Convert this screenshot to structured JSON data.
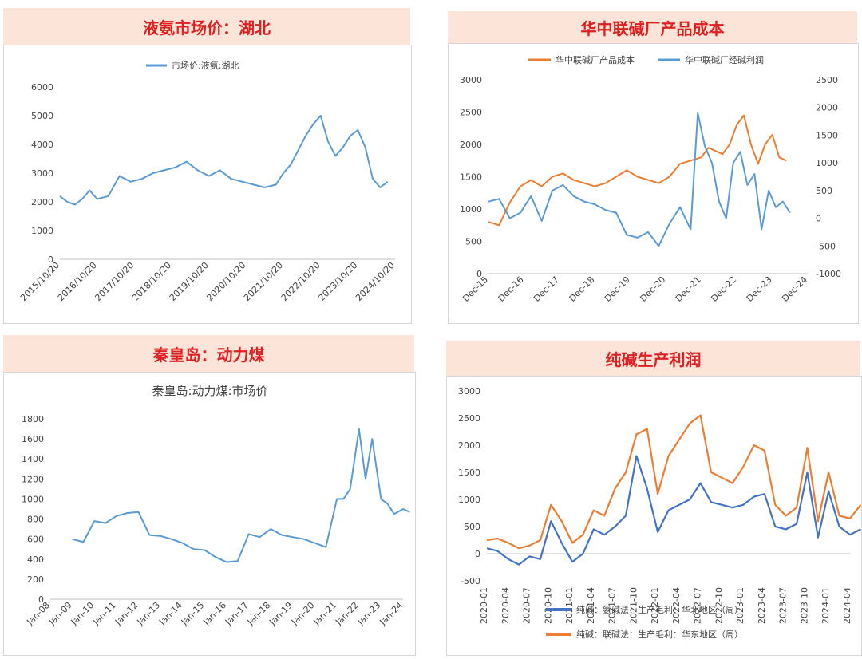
{
  "panels": {
    "p1": {
      "title": "液氨市场价：湖北"
    },
    "p2": {
      "title": "华中联碱厂产品成本"
    },
    "p3": {
      "title": "秦皇岛：动力煤"
    },
    "p4": {
      "title": "纯碱生产利润"
    }
  },
  "chart_data": [
    {
      "type": "line",
      "title": "",
      "legend": "top",
      "grid": false,
      "x_categories": [
        "2015/10/20",
        "2016/10/20",
        "2017/10/20",
        "2018/10/20",
        "2019/10/20",
        "2020/10/20",
        "2021/10/20",
        "2022/10/20",
        "2023/10/20",
        "2024/10/20"
      ],
      "ylim": [
        0,
        6000
      ],
      "yticks": [
        0,
        1000,
        2000,
        3000,
        4000,
        5000,
        6000
      ],
      "series": [
        {
          "name": "市场价:液氨:湖北",
          "color": "#5b9bd5",
          "x": [
            0,
            0.2,
            0.4,
            0.6,
            0.8,
            1.0,
            1.3,
            1.6,
            1.9,
            2.2,
            2.5,
            2.8,
            3.1,
            3.4,
            3.7,
            4.0,
            4.3,
            4.6,
            4.9,
            5.2,
            5.5,
            5.8,
            6.0,
            6.2,
            6.4,
            6.6,
            6.8,
            7.0,
            7.2,
            7.4,
            7.6,
            7.8,
            8.0,
            8.2,
            8.4,
            8.6,
            8.8
          ],
          "y": [
            2200,
            2000,
            1900,
            2100,
            2400,
            2100,
            2200,
            2900,
            2700,
            2800,
            3000,
            3100,
            3200,
            3400,
            3100,
            2900,
            3100,
            2800,
            2700,
            2600,
            2500,
            2600,
            3000,
            3300,
            3800,
            4300,
            4700,
            5000,
            4100,
            3600,
            3900,
            4300,
            4500,
            3900,
            2800,
            2500,
            2700
          ]
        }
      ]
    },
    {
      "type": "line",
      "title": "",
      "legend": "top",
      "grid": false,
      "x_categories": [
        "Dec-15",
        "Dec-16",
        "Dec-17",
        "Dec-18",
        "Dec-19",
        "Dec-20",
        "Dec-21",
        "Dec-22",
        "Dec-23",
        "Dec-24"
      ],
      "ylim_left": [
        0,
        3000
      ],
      "yticks_left": [
        0,
        500,
        1000,
        1500,
        2000,
        2500,
        3000
      ],
      "ylim_right": [
        -1000,
        2500
      ],
      "yticks_right": [
        -1000,
        -500,
        0,
        500,
        1000,
        1500,
        2000,
        2500
      ],
      "series": [
        {
          "name": "华中联碱厂产品成本",
          "color": "#ed7d31",
          "axis": "left",
          "x": [
            0,
            0.3,
            0.6,
            0.9,
            1.2,
            1.5,
            1.8,
            2.1,
            2.4,
            2.7,
            3.0,
            3.3,
            3.6,
            3.9,
            4.2,
            4.5,
            4.8,
            5.1,
            5.4,
            5.7,
            6.0,
            6.2,
            6.4,
            6.6,
            6.8,
            7.0,
            7.2,
            7.4,
            7.6,
            7.8,
            8.0,
            8.2,
            8.4
          ],
          "y": [
            800,
            750,
            1100,
            1350,
            1450,
            1350,
            1500,
            1550,
            1450,
            1400,
            1350,
            1400,
            1500,
            1600,
            1500,
            1450,
            1400,
            1500,
            1700,
            1750,
            1800,
            1950,
            1900,
            1850,
            2000,
            2300,
            2450,
            2000,
            1700,
            2000,
            2150,
            1800,
            1750
          ]
        },
        {
          "name": "华中联碱厂经碱利润",
          "color": "#5b9bd5",
          "axis": "right",
          "x": [
            0,
            0.3,
            0.6,
            0.9,
            1.2,
            1.5,
            1.8,
            2.1,
            2.4,
            2.7,
            3.0,
            3.3,
            3.6,
            3.9,
            4.2,
            4.5,
            4.8,
            5.1,
            5.4,
            5.7,
            5.9,
            6.1,
            6.3,
            6.5,
            6.7,
            6.9,
            7.1,
            7.3,
            7.5,
            7.7,
            7.9,
            8.1,
            8.3,
            8.5
          ],
          "y": [
            300,
            350,
            0,
            100,
            400,
            -50,
            500,
            600,
            400,
            300,
            250,
            150,
            100,
            -300,
            -350,
            -250,
            -500,
            -100,
            200,
            -200,
            1900,
            1300,
            1000,
            300,
            0,
            1000,
            1200,
            600,
            800,
            -200,
            500,
            200,
            300,
            100
          ]
        }
      ]
    },
    {
      "type": "line",
      "title": "秦皇岛:动力煤:市场价",
      "legend": "none",
      "grid": false,
      "x_categories": [
        "Jan-08",
        "Jan-09",
        "Jan-10",
        "Jan-11",
        "Jan-12",
        "Jan-13",
        "Jan-14",
        "Jan-15",
        "Jan-16",
        "Jan-17",
        "Jan-18",
        "Jan-19",
        "Jan-20",
        "Jan-21",
        "Jan-22",
        "Jan-23",
        "Jan-24"
      ],
      "ylim": [
        0,
        1800
      ],
      "yticks": [
        0,
        200,
        400,
        600,
        800,
        1000,
        1200,
        1400,
        1600,
        1800
      ],
      "series": [
        {
          "name": "",
          "color": "#5b9bd5",
          "x": [
            1,
            1.5,
            2,
            2.5,
            3,
            3.5,
            4,
            4.5,
            5,
            5.5,
            6,
            6.5,
            7,
            7.5,
            8,
            8.5,
            9,
            9.5,
            10,
            10.5,
            11,
            11.5,
            12,
            12.5,
            13,
            13.3,
            13.6,
            14,
            14.3,
            14.6,
            15,
            15.3,
            15.6,
            16,
            16.3
          ],
          "y": [
            600,
            570,
            780,
            760,
            830,
            860,
            870,
            640,
            630,
            600,
            560,
            500,
            490,
            420,
            370,
            380,
            650,
            620,
            700,
            640,
            620,
            600,
            560,
            520,
            1000,
            1000,
            1100,
            1700,
            1200,
            1600,
            1000,
            950,
            850,
            900,
            870
          ]
        }
      ]
    },
    {
      "type": "line",
      "title": "",
      "legend": "bottom",
      "grid": false,
      "x_categories": [
        "2020-01",
        "2020-04",
        "2020-07",
        "2020-10",
        "2021-01",
        "2021-04",
        "2021-07",
        "2021-10",
        "2022-01",
        "2022-04",
        "2022-07",
        "2022-10",
        "2023-01",
        "2023-04",
        "2023-07",
        "2023-10",
        "2024-01",
        "2024-04"
      ],
      "ylim": [
        -500,
        3000
      ],
      "yticks": [
        -500,
        0,
        500,
        1000,
        1500,
        2000,
        2500,
        3000
      ],
      "series": [
        {
          "name": "纯碱：氨碱法：生产毛利：华北地区（周）",
          "color": "#4472c4",
          "x": [
            0,
            0.5,
            1,
            1.5,
            2,
            2.5,
            3,
            3.5,
            4,
            4.5,
            5,
            5.5,
            6,
            6.5,
            7,
            7.5,
            8,
            8.5,
            9,
            9.5,
            10,
            10.5,
            11,
            11.5,
            12,
            12.5,
            13,
            13.5,
            14,
            14.5,
            15,
            15.5,
            16,
            16.5,
            17,
            17.5
          ],
          "y": [
            100,
            50,
            -100,
            -200,
            -50,
            -100,
            600,
            200,
            -150,
            0,
            450,
            350,
            500,
            700,
            1800,
            1200,
            400,
            800,
            900,
            1000,
            1300,
            950,
            900,
            850,
            900,
            1050,
            1100,
            500,
            450,
            550,
            1500,
            300,
            1150,
            500,
            350,
            450
          ]
        },
        {
          "name": "纯碱：联碱法：生产毛利：华东地区（周）",
          "color": "#ed7d31",
          "x": [
            0,
            0.5,
            1,
            1.5,
            2,
            2.5,
            3,
            3.5,
            4,
            4.5,
            5,
            5.5,
            6,
            6.5,
            7,
            7.5,
            8,
            8.5,
            9,
            9.5,
            10,
            10.5,
            11,
            11.5,
            12,
            12.5,
            13,
            13.5,
            14,
            14.5,
            15,
            15.5,
            16,
            16.5,
            17,
            17.5
          ],
          "y": [
            250,
            280,
            200,
            100,
            150,
            250,
            900,
            600,
            200,
            350,
            800,
            700,
            1200,
            1500,
            2200,
            2300,
            1100,
            1800,
            2100,
            2400,
            2550,
            1500,
            1400,
            1300,
            1600,
            2000,
            1900,
            900,
            700,
            850,
            1950,
            600,
            1500,
            700,
            650,
            900
          ]
        }
      ]
    }
  ]
}
